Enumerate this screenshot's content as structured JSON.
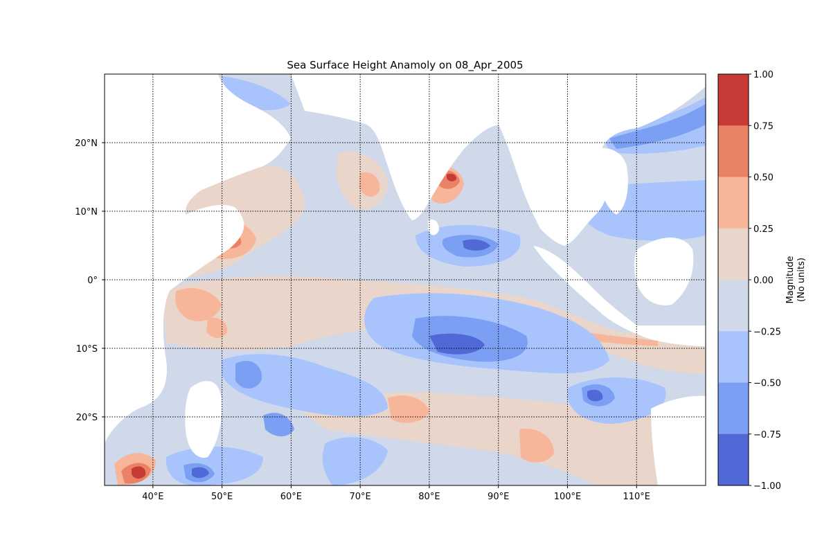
{
  "title": "Sea Surface Height Anamoly on 08_Apr_2005",
  "lon_labels": [
    "40°E",
    "50°E",
    "60°E",
    "70°E",
    "80°E",
    "90°E",
    "100°E",
    "110°E"
  ],
  "lat_labels": [
    "20°N",
    "10°N",
    "0°",
    "10°S",
    "20°S"
  ],
  "colorbar": {
    "label_line1": "Magnitude",
    "label_line2": "(No units)",
    "ticks": [
      "1.00",
      "0.75",
      "0.50",
      "0.25",
      "0.00",
      "−0.25",
      "−0.50",
      "−0.75",
      "−1.00"
    ],
    "colors": [
      "#c83a36",
      "#ea8265",
      "#f7b59a",
      "#ead5cb",
      "#cfd9ea",
      "#a9c4fd",
      "#7b9ff2",
      "#5069d7"
    ]
  },
  "map": {
    "lon_range": [
      33,
      120
    ],
    "lat_range": [
      -30,
      30
    ],
    "land_color": "#ffffff",
    "grid_style": "dotted"
  }
}
